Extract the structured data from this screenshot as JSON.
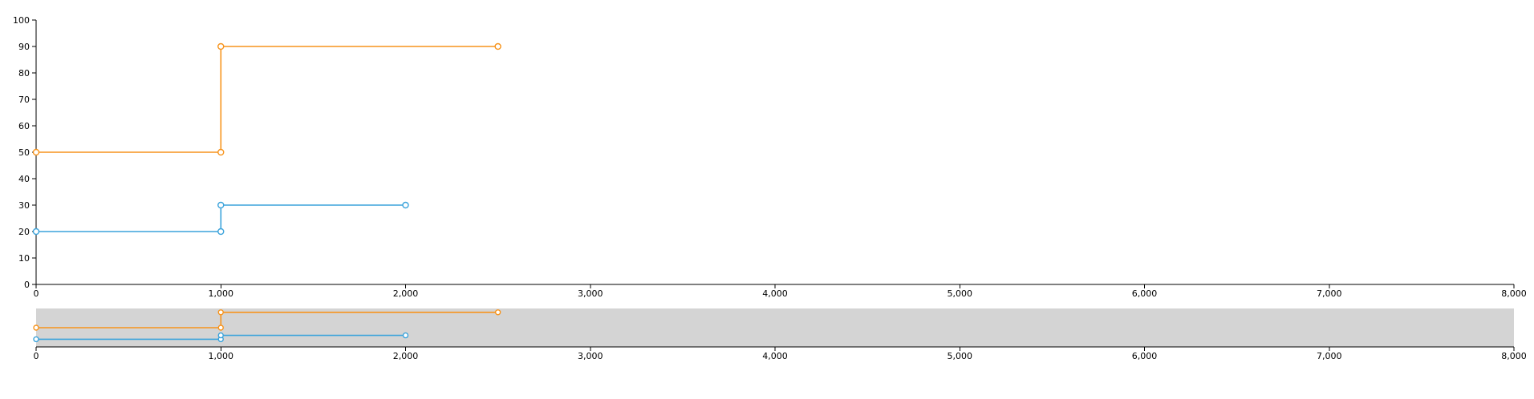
{
  "chart_data": [
    {
      "type": "line",
      "role": "main",
      "line_shape": "step-after",
      "xlim": [
        0,
        8000
      ],
      "ylim": [
        0,
        100
      ],
      "x_ticks": [
        0,
        1000,
        2000,
        3000,
        4000,
        5000,
        6000,
        7000,
        8000
      ],
      "x_tick_labels": [
        "0",
        "1,000",
        "2,000",
        "3,000",
        "4,000",
        "5,000",
        "6,000",
        "7,000",
        "8,000"
      ],
      "y_ticks": [
        0,
        10,
        20,
        30,
        40,
        50,
        60,
        70,
        80,
        90,
        100
      ],
      "y_tick_labels": [
        "0",
        "10",
        "20",
        "30",
        "40",
        "50",
        "60",
        "70",
        "80",
        "90",
        "100"
      ],
      "grid": false,
      "series": [
        {
          "color": "#f7941d",
          "points": [
            {
              "x": 0,
              "y": 50
            },
            {
              "x": 1000,
              "y": 50
            },
            {
              "x": 1000,
              "y": 90
            },
            {
              "x": 2500,
              "y": 90
            }
          ]
        },
        {
          "color": "#3ba3db",
          "points": [
            {
              "x": 0,
              "y": 20
            },
            {
              "x": 1000,
              "y": 20
            },
            {
              "x": 1000,
              "y": 30
            },
            {
              "x": 2000,
              "y": 30
            }
          ]
        }
      ]
    },
    {
      "type": "line",
      "role": "overview",
      "line_shape": "step-after",
      "xlim": [
        0,
        8000
      ],
      "ylim": [
        0,
        100
      ],
      "brush_extent": [
        0,
        8000
      ],
      "x_ticks": [
        0,
        1000,
        2000,
        3000,
        4000,
        5000,
        6000,
        7000,
        8000
      ],
      "x_tick_labels": [
        "0",
        "1,000",
        "2,000",
        "3,000",
        "4,000",
        "5,000",
        "6,000",
        "7,000",
        "8,000"
      ],
      "series": [
        {
          "color": "#f7941d",
          "points": [
            {
              "x": 0,
              "y": 50
            },
            {
              "x": 1000,
              "y": 50
            },
            {
              "x": 1000,
              "y": 90
            },
            {
              "x": 2500,
              "y": 90
            }
          ]
        },
        {
          "color": "#3ba3db",
          "points": [
            {
              "x": 0,
              "y": 20
            },
            {
              "x": 1000,
              "y": 20
            },
            {
              "x": 1000,
              "y": 30
            },
            {
              "x": 2000,
              "y": 30
            }
          ]
        }
      ]
    }
  ]
}
